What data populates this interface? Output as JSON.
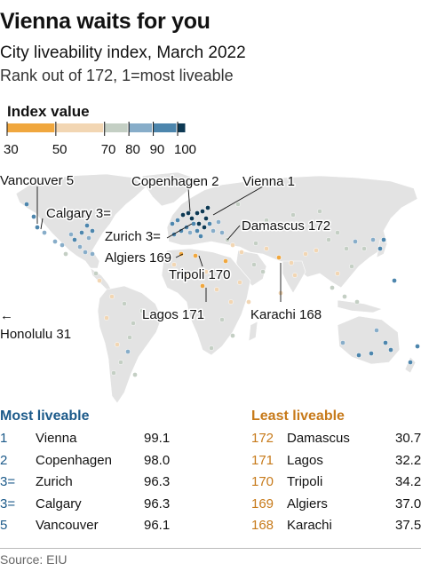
{
  "header": {
    "title": "Vienna waits for you",
    "subtitle": "City liveability index, March 2022",
    "note": "Rank out of 172, 1=most liveable"
  },
  "legend": {
    "title": "Index value",
    "ticks": [
      "30",
      "50",
      "70",
      "80",
      "90",
      "100"
    ],
    "bins": [
      {
        "from": 30,
        "to": 50,
        "color": "#f0a73e"
      },
      {
        "from": 50,
        "to": 70,
        "color": "#f2d6b3"
      },
      {
        "from": 70,
        "to": 80,
        "color": "#c4cfc4"
      },
      {
        "from": 80,
        "to": 90,
        "color": "#87adc9"
      },
      {
        "from": 90,
        "to": 100,
        "color": "#4d86ad"
      },
      {
        "from": 100,
        "to": 100,
        "color": "#0d3953"
      }
    ]
  },
  "map_labels": [
    {
      "text": "Vancouver 5"
    },
    {
      "text": "Copenhagen 2"
    },
    {
      "text": "Vienna 1"
    },
    {
      "text": "Calgary 3="
    },
    {
      "text": "Damascus 172"
    },
    {
      "text": "Zurich 3="
    },
    {
      "text": "Algiers 169"
    },
    {
      "text": "Tripoli 170"
    },
    {
      "text": "Lagos 171"
    },
    {
      "text": "Karachi 168"
    },
    {
      "text": "←"
    },
    {
      "text": "Honolulu 31"
    }
  ],
  "chart_data": {
    "type": "scatter",
    "title": "Vienna waits for you",
    "subtitle": "City liveability index, March 2022",
    "color_scale": {
      "label": "Index value",
      "min": 30,
      "max": 100
    },
    "labelled_cities": [
      {
        "city": "Vienna",
        "rank": "1",
        "value": 99.1
      },
      {
        "city": "Copenhagen",
        "rank": "2",
        "value": 98.0
      },
      {
        "city": "Zurich",
        "rank": "3=",
        "value": 96.3
      },
      {
        "city": "Calgary",
        "rank": "3=",
        "value": 96.3
      },
      {
        "city": "Vancouver",
        "rank": "5",
        "value": 96.1
      },
      {
        "city": "Honolulu",
        "rank": "31"
      },
      {
        "city": "Karachi",
        "rank": "168",
        "value": 37.5
      },
      {
        "city": "Algiers",
        "rank": "169",
        "value": 37.0
      },
      {
        "city": "Tripoli",
        "rank": "170",
        "value": 34.2
      },
      {
        "city": "Lagos",
        "rank": "171",
        "value": 32.2
      },
      {
        "city": "Damascus",
        "rank": "172",
        "value": 30.7
      }
    ]
  },
  "tables": {
    "most": {
      "heading": "Most liveable",
      "color": "#1c5a8a",
      "rows": [
        {
          "rank": "1",
          "city": "Vienna",
          "value": "99.1"
        },
        {
          "rank": "2",
          "city": "Copenhagen",
          "value": "98.0"
        },
        {
          "rank": "3=",
          "city": "Zurich",
          "value": "96.3"
        },
        {
          "rank": "3=",
          "city": "Calgary",
          "value": "96.3"
        },
        {
          "rank": "5",
          "city": "Vancouver",
          "value": "96.1"
        }
      ]
    },
    "least": {
      "heading": "Least liveable",
      "color": "#c77a1a",
      "rows": [
        {
          "rank": "172",
          "city": "Damascus",
          "value": "30.7"
        },
        {
          "rank": "171",
          "city": "Lagos",
          "value": "32.2"
        },
        {
          "rank": "170",
          "city": "Tripoli",
          "value": "34.2"
        },
        {
          "rank": "169",
          "city": "Algiers",
          "value": "37.0"
        },
        {
          "rank": "168",
          "city": "Karachi",
          "value": "37.5"
        }
      ]
    }
  },
  "source": "Source: EIU"
}
